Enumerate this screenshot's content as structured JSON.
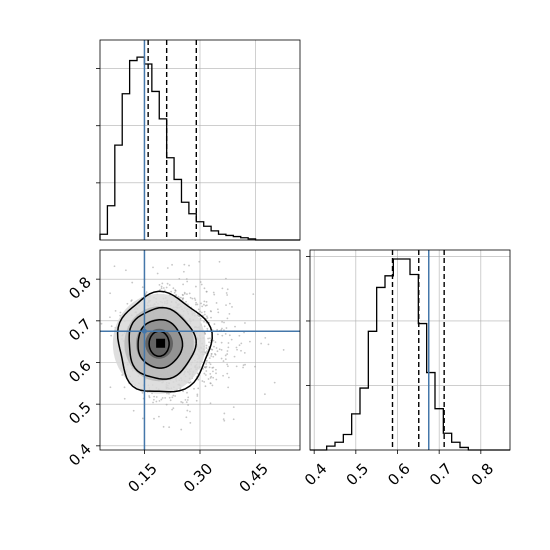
{
  "chart_data": {
    "type": "corner",
    "parameters": [
      {
        "ticks": [
          0.15,
          0.3,
          0.45
        ],
        "tick_labels": [
          "0.15",
          "0.30",
          "0.45"
        ],
        "range": [
          0.03,
          0.57
        ],
        "truth": 0.15,
        "quantiles": [
          0.16,
          0.21,
          0.29
        ],
        "histogram": {
          "bin_width": 0.02,
          "start": 0.03,
          "counts": [
            0.05,
            0.3,
            0.83,
            1.28,
            1.57,
            1.6,
            1.54,
            1.3,
            1.06,
            0.72,
            0.53,
            0.33,
            0.23,
            0.16,
            0.12,
            0.08,
            0.05,
            0.04,
            0.03,
            0.02,
            0.01,
            0.0,
            0.0,
            0.0,
            0.0,
            0.0,
            0.0
          ]
        }
      },
      {
        "ticks": [
          0.4,
          0.5,
          0.6,
          0.7,
          0.8
        ],
        "tick_labels": [
          "0.4",
          "0.5",
          "0.6",
          "0.7",
          "0.8"
        ],
        "range": [
          0.39,
          0.87
        ],
        "truth": 0.675,
        "quantiles": [
          0.588,
          0.651,
          0.712
        ],
        "histogram": {
          "bin_width": 0.02,
          "start": 0.39,
          "counts": [
            0.0,
            0.0,
            0.03,
            0.06,
            0.12,
            0.28,
            0.48,
            0.92,
            1.26,
            1.35,
            1.48,
            1.48,
            1.36,
            0.98,
            0.6,
            0.32,
            0.13,
            0.06,
            0.02,
            0.0,
            0.0,
            0.0,
            0.0,
            0.0
          ]
        }
      }
    ],
    "joint": {
      "ylim_ticks": [
        0.4,
        0.5,
        0.6,
        0.7,
        0.8
      ],
      "peak": [
        0.195,
        0.645
      ],
      "contours": [
        {
          "level": 1,
          "rx": 0.027,
          "ry": 0.03
        },
        {
          "level": 2,
          "rx": 0.06,
          "ry": 0.058
        },
        {
          "level": 3,
          "rx": 0.09,
          "ry": 0.085
        },
        {
          "level": 4,
          "rx": 0.125,
          "ry": 0.12
        }
      ],
      "scatter_extent": {
        "x": [
          0.05,
          0.56
        ],
        "y": [
          0.41,
          0.86
        ]
      }
    },
    "grid": true,
    "colors": {
      "truth": "#4477aa",
      "hist": "#000000",
      "quantile": "#000000",
      "grid": "#b0b0b0",
      "scatter": "#a0a0a0"
    }
  }
}
